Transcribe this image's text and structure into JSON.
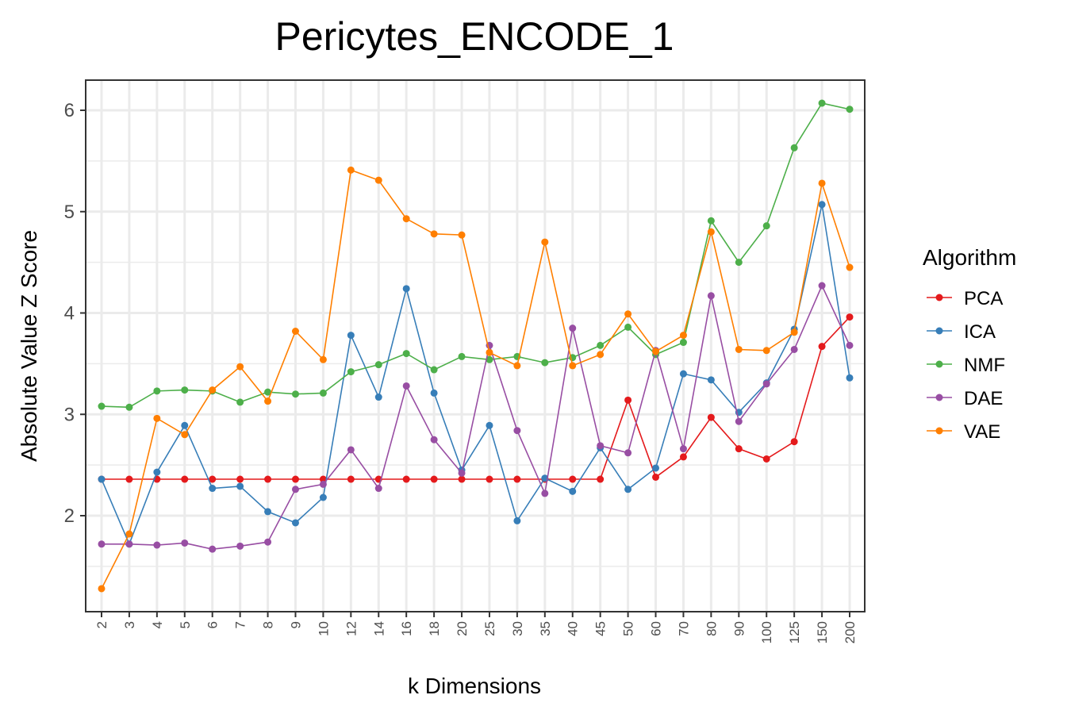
{
  "chart_data": {
    "type": "line",
    "title": "Pericytes_ENCODE_1",
    "xlabel": "k Dimensions",
    "ylabel": "Absolute Value Z Score",
    "categories": [
      "2",
      "3",
      "4",
      "5",
      "6",
      "7",
      "8",
      "9",
      "10",
      "12",
      "14",
      "16",
      "18",
      "20",
      "25",
      "30",
      "35",
      "40",
      "45",
      "50",
      "60",
      "70",
      "80",
      "90",
      "100",
      "125",
      "150",
      "200"
    ],
    "ylim": [
      1.0,
      6.3
    ],
    "yticks": [
      2,
      3,
      4,
      5,
      6
    ],
    "grid": true,
    "legend": {
      "title": "Algorithm",
      "position": "right"
    },
    "series": [
      {
        "name": "PCA",
        "color": "#e41a1c",
        "values": [
          2.36,
          2.36,
          2.36,
          2.36,
          2.36,
          2.36,
          2.36,
          2.36,
          2.36,
          2.36,
          2.36,
          2.36,
          2.36,
          2.36,
          2.36,
          2.36,
          2.36,
          2.36,
          2.36,
          3.14,
          2.38,
          2.58,
          2.97,
          2.66,
          2.56,
          2.73,
          3.67,
          3.96
        ]
      },
      {
        "name": "ICA",
        "color": "#377eb8",
        "values": [
          2.36,
          1.72,
          2.43,
          2.89,
          2.27,
          2.29,
          2.04,
          1.93,
          2.18,
          3.78,
          3.17,
          4.24,
          3.21,
          2.45,
          2.89,
          1.95,
          2.37,
          2.24,
          2.67,
          2.26,
          2.47,
          3.4,
          3.34,
          3.02,
          3.31,
          3.84,
          5.07,
          3.36
        ]
      },
      {
        "name": "NMF",
        "color": "#4daf4a",
        "values": [
          3.08,
          3.07,
          3.23,
          3.24,
          3.23,
          3.12,
          3.22,
          3.2,
          3.21,
          3.42,
          3.49,
          3.6,
          3.44,
          3.57,
          3.54,
          3.57,
          3.51,
          3.56,
          3.68,
          3.86,
          3.59,
          3.71,
          4.91,
          4.5,
          4.86,
          5.63,
          6.07,
          6.01
        ]
      },
      {
        "name": "DAE",
        "color": "#984ea3",
        "values": [
          1.72,
          1.72,
          1.71,
          1.73,
          1.67,
          1.7,
          1.74,
          2.26,
          2.31,
          2.65,
          2.27,
          3.28,
          2.75,
          2.42,
          3.68,
          2.84,
          2.22,
          3.85,
          2.69,
          2.62,
          3.63,
          2.66,
          4.17,
          2.93,
          3.3,
          3.64,
          4.27,
          3.68
        ]
      },
      {
        "name": "VAE",
        "color": "#ff7f00",
        "values": [
          1.28,
          1.82,
          2.96,
          2.8,
          3.24,
          3.47,
          3.13,
          3.82,
          3.54,
          5.41,
          5.31,
          4.93,
          4.78,
          4.77,
          3.61,
          3.48,
          4.7,
          3.48,
          3.59,
          3.99,
          3.62,
          3.78,
          4.8,
          3.64,
          3.63,
          3.81,
          5.28,
          4.45
        ]
      }
    ]
  }
}
